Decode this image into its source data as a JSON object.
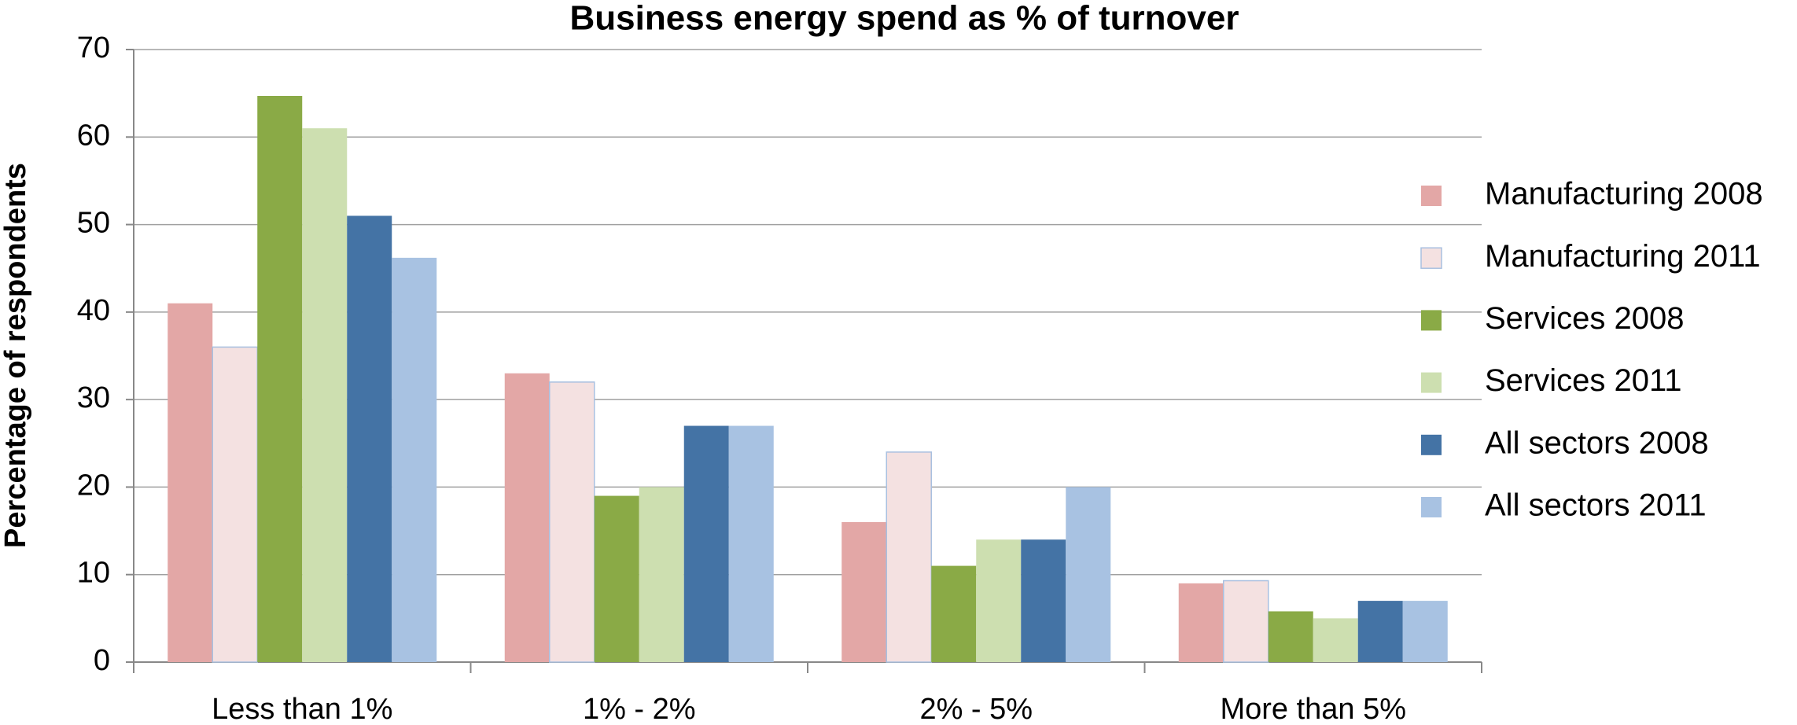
{
  "chart_data": {
    "type": "bar",
    "title": "Business energy spend as % of turnover",
    "ylabel": "Percentage of respondents",
    "categories": [
      "Less than 1%",
      "1% - 2%",
      "2% - 5%",
      "More than 5%"
    ],
    "series": [
      {
        "name": "Manufacturing 2008",
        "color": "#e3a7a6",
        "values": [
          41,
          33,
          16,
          9
        ]
      },
      {
        "name": "Manufacturing 2011",
        "color": "#f4e1e1",
        "values": [
          36,
          32,
          24,
          9.3
        ]
      },
      {
        "name": "Services 2008",
        "color": "#8aaa46",
        "values": [
          64.7,
          19,
          11,
          5.8
        ]
      },
      {
        "name": "Services 2011",
        "color": "#cddfb0",
        "values": [
          61,
          20,
          14,
          5
        ]
      },
      {
        "name": "All sectors 2008",
        "color": "#4473a5",
        "values": [
          51,
          27,
          14,
          7
        ]
      },
      {
        "name": "All sectors 2011",
        "color": "#a8c2e2",
        "values": [
          46.2,
          27,
          20,
          7
        ]
      }
    ],
    "ylim": [
      0,
      70
    ],
    "yticks": [
      0,
      10,
      20,
      30,
      40,
      50,
      60,
      70
    ],
    "grid": true,
    "legend": "right"
  }
}
